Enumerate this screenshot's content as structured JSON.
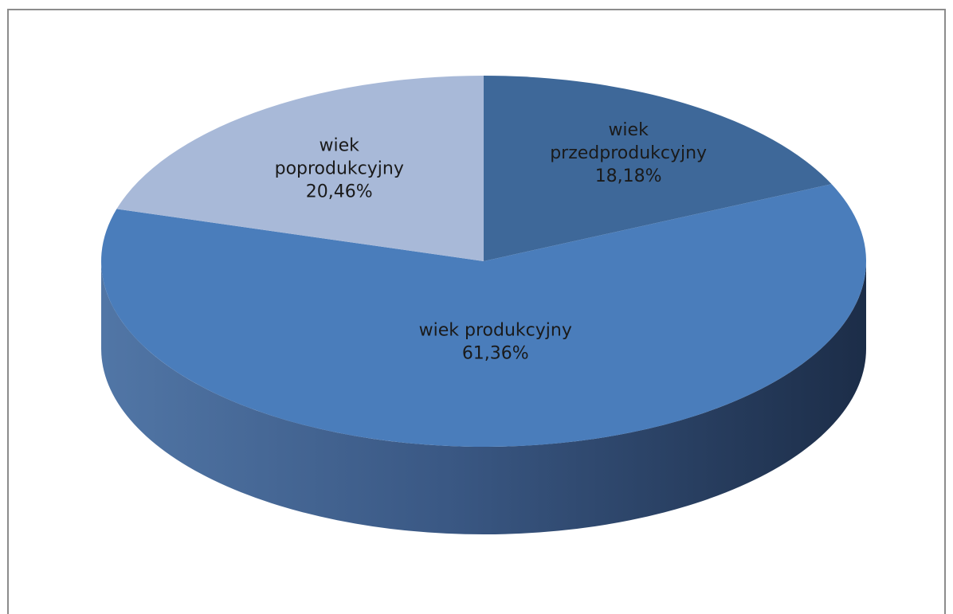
{
  "chart_data": {
    "type": "pie",
    "style": "3d",
    "slices": [
      {
        "label_lines": [
          "wiek",
          "przedprodukcyjny"
        ],
        "value_text": "18,18%",
        "value": 18.18,
        "color": "#3e6899"
      },
      {
        "label_lines": [
          "wiek produkcyjny"
        ],
        "value_text": "61,36%",
        "value": 61.36,
        "color": "#4a7dbb"
      },
      {
        "label_lines": [
          "wiek",
          "poprodukcyjny"
        ],
        "value_text": "20,46%",
        "value": 20.46,
        "color": "#a8b9d8"
      }
    ],
    "legend": "none",
    "start_angle_deg": 0,
    "direction": "clockwise"
  }
}
